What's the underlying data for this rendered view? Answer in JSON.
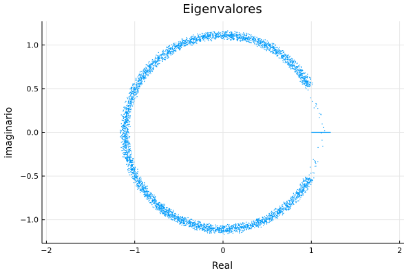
{
  "chart_data": {
    "type": "scatter",
    "title": "Eigenvalores",
    "xlabel": "Real",
    "ylabel": "imaginario",
    "xlim": [
      -2.05,
      2.05
    ],
    "ylim": [
      -1.27,
      1.27
    ],
    "x_ticks": [
      -2,
      -1,
      0,
      1,
      2
    ],
    "x_tick_labels": [
      "−2",
      "−1",
      "0",
      "1",
      "2"
    ],
    "y_ticks": [
      -1.0,
      -0.5,
      0.0,
      0.5,
      1.0
    ],
    "y_tick_labels": [
      "−1.0",
      "−0.5",
      "0.0",
      "0.5",
      "1.0"
    ],
    "grid": true,
    "legend": "none",
    "marker_color": "#009af9",
    "series": [
      {
        "description_of_cloud": "dense ring of eigenvalues, radius ~1.05–1.15, with a gap near the positive real axis",
        "ring": {
          "center": [
            0,
            0
          ],
          "radius_min": 1.05,
          "radius_max": 1.17,
          "gap_angle_deg": [
            -28,
            28
          ]
        },
        "real_axis_cluster": {
          "x_range": [
            1.0,
            1.22
          ],
          "y": 0.0
        }
      }
    ]
  }
}
